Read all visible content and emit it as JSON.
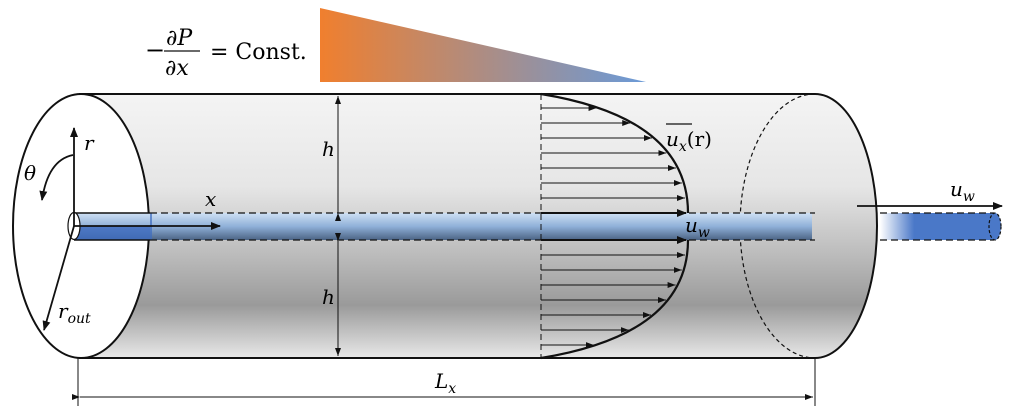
{
  "formula": {
    "minus": "−",
    "numerator": "∂P",
    "denominator": "∂x",
    "equals": "= Const."
  },
  "labels": {
    "r": "r",
    "theta": "θ",
    "x": "x",
    "r_out_main": "r",
    "r_out_sub": "out",
    "h_top": "h",
    "h_bottom": "h",
    "ux_main": "u",
    "ux_sub": "x",
    "ux_arg": "(r)",
    "uw_inner_main": "u",
    "uw_inner_sub": "w",
    "uw_outer_main": "u",
    "uw_outer_sub": "w",
    "Lx_main": "L",
    "Lx_sub": "x"
  },
  "colors": {
    "gradient_start": "#f07f2e",
    "gradient_end": "#6a9ad8",
    "rod": "#4a78c8"
  }
}
